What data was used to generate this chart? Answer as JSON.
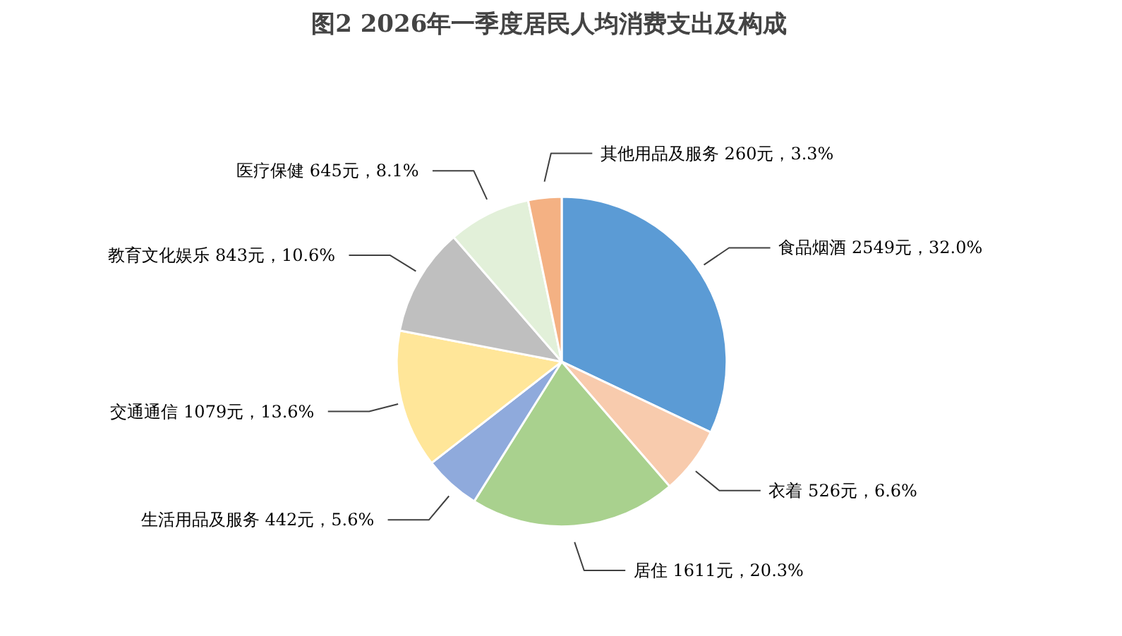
{
  "chart_data": {
    "type": "pie",
    "title": "图2    2026年一季度居民人均消费支出及构成",
    "categories": [
      "食品烟酒",
      "衣着",
      "居住",
      "生活用品及服务",
      "交通通信",
      "教育文化娱乐",
      "医疗保健",
      "其他用品及服务"
    ],
    "values": [
      2549,
      526,
      1611,
      442,
      1079,
      843,
      645,
      260
    ],
    "value_labels": [
      "2549元，32.0%",
      "526元，6.6%",
      "1611元，20.3%",
      "442元，5.6%",
      "1079元，13.6%",
      "843元，10.6%",
      "645元，8.1%",
      "260元，3.3%"
    ],
    "colors": [
      "#5b9bd5",
      "#f8cbad",
      "#a9d18e",
      "#8faadc",
      "#ffe699",
      "#bfbfbf",
      "#e2f0d9",
      "#f4b183"
    ]
  }
}
